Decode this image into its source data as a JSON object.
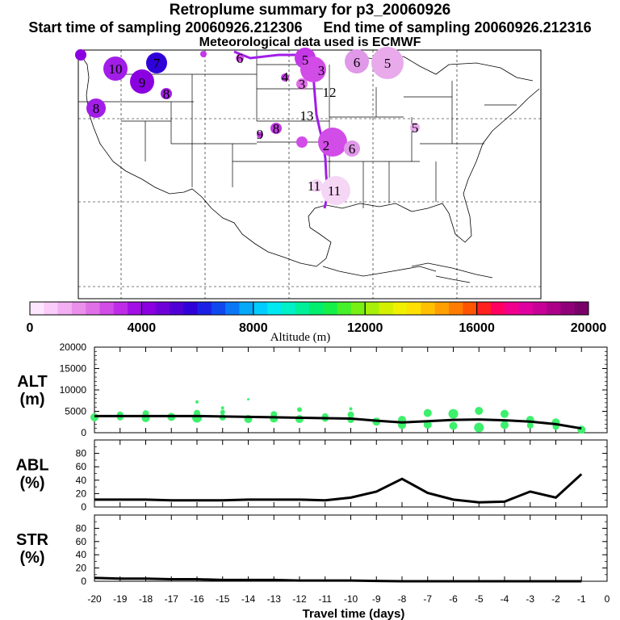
{
  "title": "Retroplume summary for p3_20060926",
  "start_label": "Start time of sampling 20060926.212306",
  "end_label": "End time of sampling 20060926.212316",
  "met_label": "Meteorological data used is ECMWF",
  "colorbar": {
    "ticks": [
      "0",
      "4000",
      "8000",
      "12000",
      "16000",
      "20000"
    ],
    "label": "Altitude (m)",
    "colors": [
      "#ffe6ff",
      "#f9ccf9",
      "#f2b0f2",
      "#ea90ea",
      "#e070e6",
      "#d24ce8",
      "#bf2ce8",
      "#a210e6",
      "#8a00e0",
      "#7000d8",
      "#5000d4",
      "#3000d8",
      "#1c20e6",
      "#1048f0",
      "#0a78f6",
      "#06a8f8",
      "#00ccff",
      "#00e8f0",
      "#00f0c8",
      "#00f09a",
      "#00ee70",
      "#14f048",
      "#46f028",
      "#78f014",
      "#a8f00a",
      "#d4f000",
      "#f0f000",
      "#ffe000",
      "#ffc000",
      "#ffa000",
      "#ff7c00",
      "#ff5400",
      "#ff2020",
      "#ff0060",
      "#f0008c",
      "#e000a0",
      "#c80098",
      "#ac0088",
      "#900078",
      "#780068"
    ]
  },
  "map_labels": [
    {
      "text": "10",
      "col": "#a21ee8"
    },
    {
      "text": "7",
      "col": "#3a2ae0"
    },
    {
      "text": "9",
      "col": "#9520e6"
    },
    {
      "text": "8",
      "col": "#a21ee8"
    },
    {
      "text": "8",
      "col": "#a21ee8"
    },
    {
      "text": "6",
      "col": "#d24ce8"
    },
    {
      "text": "5",
      "col": "#c438e6"
    },
    {
      "text": "3",
      "col": "#d24ce8"
    },
    {
      "text": "4",
      "col": "#d24ce8"
    },
    {
      "text": "3",
      "col": "#d24ce8"
    },
    {
      "text": "12",
      "col": "#f0c0f0"
    },
    {
      "text": "13",
      "col": "#f0c0f0"
    },
    {
      "text": "9",
      "col": "#c438e6"
    },
    {
      "text": "8",
      "col": "#c438e6"
    },
    {
      "text": "2",
      "col": "#d24ce8"
    },
    {
      "text": "6",
      "col": "#d24ce8"
    },
    {
      "text": "5",
      "col": "#c438e6"
    },
    {
      "text": "11",
      "col": "#f5d6f5"
    },
    {
      "text": "11",
      "col": "#f5d6f5"
    },
    {
      "text": "6",
      "col": "#e098e8"
    },
    {
      "text": "5",
      "col": "#e098e8"
    }
  ],
  "chart_data": [
    {
      "type": "line",
      "panel": "ALT",
      "ylabel_lines": [
        "ALT",
        "(m)"
      ],
      "yticks": [
        "0",
        "5000",
        "10000",
        "15000",
        "20000"
      ],
      "ylim": [
        0,
        20000
      ],
      "x": [
        -20,
        -19,
        -18,
        -17,
        -16,
        -15,
        -14,
        -13,
        -12,
        -11,
        -10,
        -9,
        -8,
        -7,
        -6,
        -5,
        -4,
        -3,
        -2,
        -1
      ],
      "values": [
        3900,
        3900,
        3900,
        3900,
        3900,
        3800,
        3700,
        3600,
        3500,
        3400,
        3300,
        2800,
        2400,
        2700,
        3000,
        3100,
        2900,
        2600,
        2000,
        1000
      ],
      "scatter_points": [
        {
          "x": -20,
          "y": 3600,
          "s": 5
        },
        {
          "x": -19,
          "y": 4200,
          "s": 4
        },
        {
          "x": -19,
          "y": 3600,
          "s": 4
        },
        {
          "x": -18,
          "y": 4500,
          "s": 4
        },
        {
          "x": -18,
          "y": 3400,
          "s": 5
        },
        {
          "x": -17,
          "y": 3700,
          "s": 5
        },
        {
          "x": -16,
          "y": 3500,
          "s": 6
        },
        {
          "x": -16,
          "y": 4600,
          "s": 4
        },
        {
          "x": -16,
          "y": 7200,
          "s": 2
        },
        {
          "x": -15,
          "y": 5800,
          "s": 2
        },
        {
          "x": -15,
          "y": 4800,
          "s": 3
        },
        {
          "x": -15,
          "y": 3600,
          "s": 4
        },
        {
          "x": -14,
          "y": 7800,
          "s": 1.5
        },
        {
          "x": -14,
          "y": 3200,
          "s": 5
        },
        {
          "x": -13,
          "y": 4300,
          "s": 4
        },
        {
          "x": -13,
          "y": 3300,
          "s": 5
        },
        {
          "x": -12,
          "y": 5400,
          "s": 3
        },
        {
          "x": -12,
          "y": 3200,
          "s": 5
        },
        {
          "x": -11,
          "y": 3800,
          "s": 4
        },
        {
          "x": -11,
          "y": 3300,
          "s": 4
        },
        {
          "x": -10,
          "y": 5600,
          "s": 2
        },
        {
          "x": -10,
          "y": 4200,
          "s": 4
        },
        {
          "x": -10,
          "y": 3000,
          "s": 4
        },
        {
          "x": -9,
          "y": 2600,
          "s": 5
        },
        {
          "x": -8,
          "y": 3000,
          "s": 5
        },
        {
          "x": -8,
          "y": 1800,
          "s": 5
        },
        {
          "x": -7,
          "y": 4600,
          "s": 5
        },
        {
          "x": -7,
          "y": 1900,
          "s": 5
        },
        {
          "x": -6,
          "y": 4400,
          "s": 6
        },
        {
          "x": -6,
          "y": 1600,
          "s": 5
        },
        {
          "x": -5,
          "y": 5100,
          "s": 5
        },
        {
          "x": -5,
          "y": 1200,
          "s": 6
        },
        {
          "x": -4,
          "y": 4400,
          "s": 5
        },
        {
          "x": -4,
          "y": 1800,
          "s": 5
        },
        {
          "x": -3,
          "y": 3000,
          "s": 5
        },
        {
          "x": -3,
          "y": 1700,
          "s": 4
        },
        {
          "x": -2,
          "y": 2400,
          "s": 5
        },
        {
          "x": -2,
          "y": 1400,
          "s": 4
        },
        {
          "x": -1,
          "y": 700,
          "s": 5
        }
      ]
    },
    {
      "type": "line",
      "panel": "ABL",
      "ylabel_lines": [
        "ABL",
        "(%)"
      ],
      "yticks": [
        "0",
        "20",
        "40",
        "60",
        "80"
      ],
      "ylim": [
        0,
        100
      ],
      "x": [
        -20,
        -19,
        -18,
        -17,
        -16,
        -15,
        -14,
        -13,
        -12,
        -11,
        -10,
        -9,
        -8,
        -7,
        -6,
        -5,
        -4,
        -3,
        -2,
        -1
      ],
      "values": [
        11,
        11,
        11,
        10,
        10,
        10,
        11,
        11,
        11,
        10,
        14,
        23,
        42,
        21,
        11,
        7,
        8,
        23,
        14,
        49
      ]
    },
    {
      "type": "line",
      "panel": "STR",
      "ylabel_lines": [
        "STR",
        "(%)"
      ],
      "yticks": [
        "0",
        "20",
        "40",
        "60",
        "80"
      ],
      "ylim": [
        0,
        100
      ],
      "x": [
        -20,
        -19,
        -18,
        -17,
        -16,
        -15,
        -14,
        -13,
        -12,
        -11,
        -10,
        -9,
        -8,
        -7,
        -6,
        -5,
        -4,
        -3,
        -2,
        -1
      ],
      "values": [
        5,
        4,
        4,
        3,
        3,
        2,
        2,
        2,
        1,
        1,
        1,
        0.5,
        0,
        0,
        0,
        0,
        0,
        0,
        0,
        0
      ]
    }
  ],
  "xaxis": {
    "ticks": [
      "-20",
      "-19",
      "-18",
      "-17",
      "-16",
      "-15",
      "-14",
      "-13",
      "-12",
      "-11",
      "-10",
      "-9",
      "-8",
      "-7",
      "-6",
      "-5",
      "-4",
      "-3",
      "-2",
      "-1",
      "0"
    ],
    "label": "Travel time (days)"
  }
}
